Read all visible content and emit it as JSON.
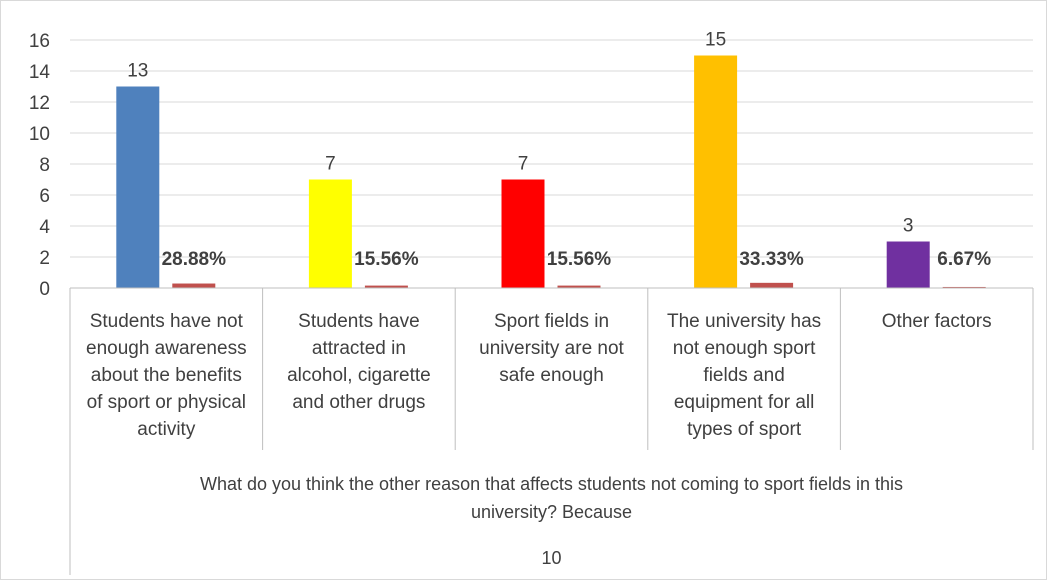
{
  "chart_data": {
    "type": "bar",
    "categories": [
      [
        "Students have not",
        "enough awareness",
        "about the benefits",
        "of sport or physical",
        "activity"
      ],
      [
        "Students have",
        "attracted in",
        "alcohol, cigarette",
        "and other drugs"
      ],
      [
        "Sport fields in",
        "university are not",
        "safe enough"
      ],
      [
        "The university has",
        "not enough sport",
        "fields and",
        "equipment for all",
        "types of sport"
      ],
      [
        "Other factors"
      ]
    ],
    "series": [
      {
        "values": [
          13,
          7,
          7,
          15,
          3
        ],
        "data_labels": [
          "13",
          "7",
          "7",
          "15",
          "3"
        ]
      },
      {
        "values": [
          0.2888,
          0.1556,
          0.1556,
          0.3333,
          0.0667
        ],
        "data_labels": [
          "28.88%",
          "15.56%",
          "15.56%",
          "33.33%",
          "6.67%"
        ]
      }
    ],
    "bar_colors": [
      "#4F81BD",
      "#FFFF00",
      "#FF0000",
      "#FFC000",
      "#7030A0"
    ],
    "percent_bar_color": "#C0504D",
    "ylim": [
      0,
      16
    ],
    "yticks": [
      "0",
      "2",
      "4",
      "6",
      "8",
      "10",
      "12",
      "14",
      "16"
    ],
    "xlabel_lines": [
      "What do you think the other reason that affects students not coming to sport fields in this",
      "university? Because"
    ],
    "group_label": "10",
    "grid": true,
    "colors": {
      "grid": "#D9D9D9",
      "axis": "#BFBFBF",
      "text": "#404040",
      "label_bold": "#404040"
    }
  }
}
